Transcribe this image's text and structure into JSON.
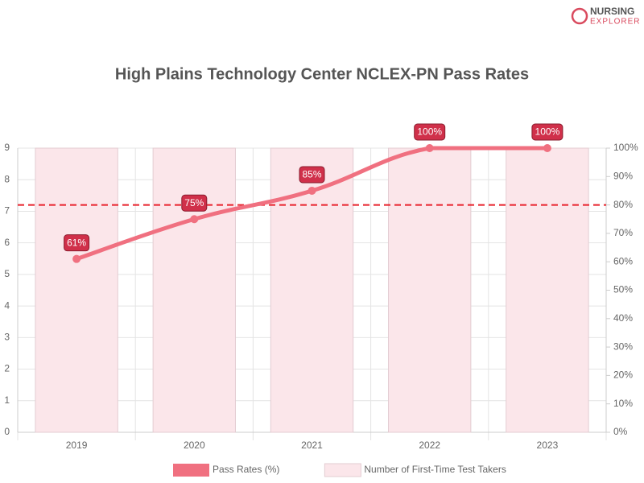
{
  "brand": {
    "line1": "NURSING",
    "line2": "EXPLORER"
  },
  "chart_data": {
    "type": "bar",
    "title": "High Plains Technology Center NCLEX-PN Pass Rates",
    "categories": [
      "2019",
      "2020",
      "2021",
      "2022",
      "2023"
    ],
    "series": [
      {
        "name": "Pass Rates (%)",
        "type": "line",
        "axis": "y2",
        "color": "#f07080",
        "values": [
          61,
          75,
          85,
          100,
          100
        ],
        "value_labels": [
          "61%",
          "75%",
          "85%",
          "100%",
          "100%"
        ]
      },
      {
        "name": "Number of First-Time Test Takers",
        "type": "bar",
        "color": "#fbe6ea",
        "values": [
          9,
          9,
          9,
          9,
          9
        ]
      }
    ],
    "ylim": [
      0,
      9
    ],
    "yticks": [
      0,
      1,
      2,
      3,
      4,
      5,
      6,
      7,
      8,
      9
    ],
    "y2lim": [
      0,
      100
    ],
    "y2ticks": [
      {
        "value": 0,
        "label": "0%"
      },
      {
        "value": 10,
        "label": "10%"
      },
      {
        "value": 20,
        "label": "20%"
      },
      {
        "value": 30,
        "label": "30%"
      },
      {
        "value": 40,
        "label": "40%"
      },
      {
        "value": 50,
        "label": "50%"
      },
      {
        "value": 60,
        "label": "60%"
      },
      {
        "value": 70,
        "label": "70%"
      },
      {
        "value": 80,
        "label": "80%"
      },
      {
        "value": 90,
        "label": "90%"
      },
      {
        "value": 100,
        "label": "100%"
      }
    ],
    "reference_line": {
      "value": 80,
      "axis": "y2",
      "color": "#e8202a"
    },
    "grid": true,
    "legend": "bottom"
  }
}
